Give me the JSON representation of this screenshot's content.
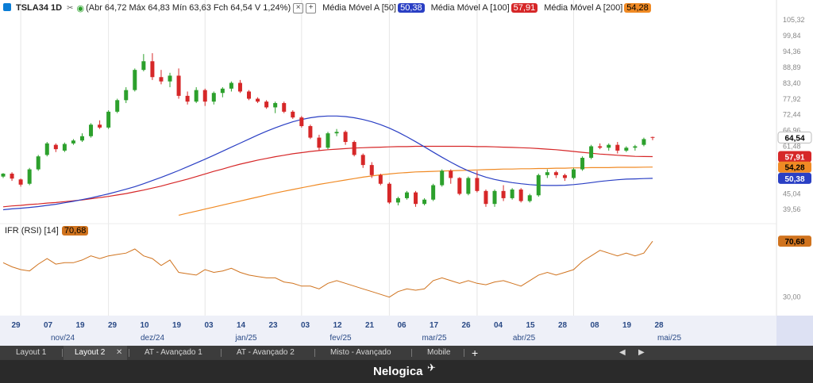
{
  "header": {
    "symbol": "TSLA34 1D",
    "ohlc": "(Abr 64,72 Máx 64,83 Mín 63,63 Fch 64,54 V 1,24%)",
    "mas": [
      {
        "label": "Média Móvel A [50]",
        "value": "50,38",
        "color": "#2a3fc4"
      },
      {
        "label": "Média Móvel A [100]",
        "value": "57,91",
        "color": "#d62728"
      },
      {
        "label": "Média Móvel A [200]",
        "value": "54,28",
        "color": "#f08a24"
      }
    ]
  },
  "rsi": {
    "label": "IFR (RSI) [14]",
    "value": "70,68",
    "color": "#d0731e"
  },
  "price_axis": {
    "ticks": [
      "105,32",
      "99,84",
      "94,36",
      "88,89",
      "83,40",
      "77,92",
      "72,44",
      "66,96",
      "61,48",
      "45,04",
      "39,56"
    ],
    "rsi_ticks": [
      "30,00"
    ]
  },
  "price_tags": [
    {
      "value": "64,54",
      "bg": "#ffffff",
      "fg": "#000000"
    },
    {
      "value": "57,91",
      "bg": "#d62728",
      "fg": "#ffffff"
    },
    {
      "value": "54,28",
      "bg": "#f08a24",
      "fg": "#000000"
    },
    {
      "value": "50,38",
      "bg": "#2a3fc4",
      "fg": "#ffffff"
    },
    {
      "value": "70,68",
      "bg": "#d0731e",
      "fg": "#000000"
    }
  ],
  "time_axis": {
    "days": [
      "29",
      "07",
      "19",
      "29",
      "10",
      "19",
      "03",
      "14",
      "23",
      "03",
      "12",
      "21",
      "06",
      "17",
      "26",
      "04",
      "15",
      "28",
      "08",
      "19",
      "28"
    ],
    "months": [
      "nov/24",
      "dez/24",
      "jan/25",
      "fev/25",
      "mar/25",
      "abr/25",
      "mai/25"
    ]
  },
  "tabs": [
    "Layout 1",
    "Layout 2",
    "AT - Avançado 1",
    "AT - Avançado 2",
    "Misto - Avançado",
    "Mobile"
  ],
  "active_tab": "Layout 2",
  "brand": "Nelogica",
  "colors": {
    "up": "#2ca02c",
    "down": "#d62728",
    "ma50": "#2a3fc4",
    "ma100": "#d62728",
    "ma200": "#f08a24",
    "rsi": "#d0731e"
  },
  "chart_data": {
    "type": "candlestick",
    "symbol": "TSLA34",
    "interval": "1D",
    "ylim": [
      36.6,
      107.3
    ],
    "x": [
      "2024-10-29",
      "2024-10-31",
      "2024-11-04",
      "2024-11-06",
      "2024-11-08",
      "2024-11-12",
      "2024-11-14",
      "2024-11-18",
      "2024-11-20",
      "2024-11-22",
      "2024-11-26",
      "2024-11-28",
      "2024-12-02",
      "2024-12-04",
      "2024-12-06",
      "2024-12-10",
      "2024-12-12",
      "2024-12-16",
      "2024-12-18",
      "2024-12-20",
      "2024-12-24",
      "2024-12-27",
      "2024-12-31",
      "2025-01-03",
      "2025-01-07",
      "2025-01-09",
      "2025-01-13",
      "2025-01-15",
      "2025-01-17",
      "2025-01-21",
      "2025-01-23",
      "2025-01-27",
      "2025-01-29",
      "2025-01-31",
      "2025-02-04",
      "2025-02-06",
      "2025-02-10",
      "2025-02-12",
      "2025-02-14",
      "2025-02-18",
      "2025-02-20",
      "2025-02-24",
      "2025-02-26",
      "2025-02-28",
      "2025-03-04",
      "2025-03-06",
      "2025-03-10",
      "2025-03-12",
      "2025-03-14",
      "2025-03-18",
      "2025-03-20",
      "2025-03-24",
      "2025-03-26",
      "2025-03-28",
      "2025-04-01",
      "2025-04-03",
      "2025-04-07",
      "2025-04-09",
      "2025-04-11",
      "2025-04-15",
      "2025-04-17",
      "2025-04-22",
      "2025-04-24",
      "2025-04-28",
      "2025-04-30",
      "2025-05-02",
      "2025-05-06",
      "2025-05-08",
      "2025-05-12",
      "2025-05-14",
      "2025-05-16",
      "2025-05-20",
      "2025-05-22",
      "2025-05-26",
      "2025-05-28"
    ],
    "candles": [
      [
        51.0,
        52.2,
        50.5,
        52.0
      ],
      [
        52.0,
        52.5,
        49.5,
        50.3
      ],
      [
        50.0,
        50.3,
        47.5,
        48.2
      ],
      [
        48.5,
        54.0,
        48.0,
        53.5
      ],
      [
        53.5,
        58.5,
        53.0,
        58.0
      ],
      [
        58.5,
        63.0,
        58.0,
        62.5
      ],
      [
        62.0,
        62.5,
        59.5,
        60.5
      ],
      [
        60.0,
        62.8,
        59.5,
        62.3
      ],
      [
        62.5,
        64.0,
        62.0,
        63.5
      ],
      [
        63.5,
        66.0,
        63.0,
        65.0
      ],
      [
        65.0,
        69.5,
        64.5,
        69.0
      ],
      [
        69.0,
        70.5,
        67.5,
        68.0
      ],
      [
        68.0,
        74.0,
        67.5,
        73.5
      ],
      [
        73.5,
        78.0,
        73.0,
        77.5
      ],
      [
        77.5,
        82.0,
        76.5,
        81.0
      ],
      [
        81.0,
        88.5,
        80.5,
        88.0
      ],
      [
        88.0,
        93.5,
        87.5,
        91.0
      ],
      [
        91.0,
        93.8,
        84.5,
        85.5
      ],
      [
        85.5,
        88.0,
        83.0,
        84.0
      ],
      [
        84.0,
        87.0,
        82.0,
        86.0
      ],
      [
        86.0,
        88.5,
        78.0,
        79.0
      ],
      [
        79.0,
        80.5,
        76.0,
        77.0
      ],
      [
        77.0,
        82.0,
        76.5,
        81.0
      ],
      [
        81.0,
        81.5,
        75.5,
        77.0
      ],
      [
        77.0,
        80.5,
        76.0,
        80.0
      ],
      [
        80.0,
        82.0,
        78.5,
        81.5
      ],
      [
        81.5,
        84.0,
        80.5,
        83.5
      ],
      [
        83.5,
        84.5,
        80.0,
        80.5
      ],
      [
        80.5,
        81.0,
        77.5,
        78.0
      ],
      [
        78.0,
        78.5,
        76.5,
        77.0
      ],
      [
        77.0,
        77.5,
        74.5,
        75.0
      ],
      [
        75.0,
        77.0,
        73.0,
        76.5
      ],
      [
        76.5,
        77.0,
        73.0,
        73.5
      ],
      [
        73.5,
        74.0,
        71.0,
        71.5
      ],
      [
        71.5,
        72.0,
        68.0,
        68.5
      ],
      [
        68.5,
        69.0,
        64.0,
        64.5
      ],
      [
        64.5,
        65.5,
        60.0,
        61.0
      ],
      [
        61.0,
        66.5,
        60.5,
        66.0
      ],
      [
        66.0,
        67.5,
        65.0,
        66.5
      ],
      [
        66.5,
        67.0,
        62.0,
        63.0
      ],
      [
        63.0,
        63.5,
        58.0,
        58.5
      ],
      [
        58.5,
        59.0,
        54.0,
        55.0
      ],
      [
        55.0,
        56.0,
        50.5,
        51.5
      ],
      [
        51.5,
        52.0,
        48.0,
        48.5
      ],
      [
        48.5,
        49.0,
        41.5,
        42.0
      ],
      [
        42.0,
        44.0,
        41.0,
        43.5
      ],
      [
        43.5,
        46.0,
        43.0,
        45.5
      ],
      [
        45.5,
        46.0,
        40.5,
        41.5
      ],
      [
        41.5,
        43.5,
        41.0,
        43.0
      ],
      [
        43.0,
        48.5,
        42.5,
        48.0
      ],
      [
        48.0,
        53.5,
        47.5,
        53.0
      ],
      [
        53.0,
        53.5,
        48.5,
        50.5
      ],
      [
        50.5,
        50.8,
        44.5,
        45.0
      ],
      [
        45.0,
        51.0,
        44.5,
        50.5
      ],
      [
        50.5,
        53.0,
        45.5,
        46.0
      ],
      [
        46.0,
        46.5,
        40.5,
        41.5
      ],
      [
        41.5,
        46.5,
        40.5,
        46.0
      ],
      [
        46.0,
        48.0,
        42.5,
        43.5
      ],
      [
        43.5,
        47.0,
        43.0,
        46.5
      ],
      [
        46.5,
        47.0,
        42.0,
        42.5
      ],
      [
        42.5,
        45.0,
        42.0,
        44.5
      ],
      [
        44.5,
        52.0,
        44.0,
        51.5
      ],
      [
        51.5,
        53.5,
        50.5,
        52.5
      ],
      [
        52.5,
        53.0,
        50.5,
        51.5
      ],
      [
        51.5,
        52.0,
        49.5,
        50.5
      ],
      [
        50.5,
        54.0,
        50.0,
        53.5
      ],
      [
        53.5,
        58.0,
        53.0,
        57.5
      ],
      [
        57.5,
        62.0,
        57.0,
        61.5
      ],
      [
        61.5,
        62.5,
        60.5,
        61.0
      ],
      [
        61.0,
        62.5,
        60.0,
        62.0
      ],
      [
        62.0,
        63.0,
        59.0,
        60.0
      ],
      [
        60.0,
        61.5,
        59.5,
        61.0
      ],
      [
        61.0,
        62.0,
        60.0,
        61.5
      ],
      [
        62.0,
        64.5,
        61.5,
        64.0
      ],
      [
        64.72,
        64.83,
        63.63,
        64.54
      ]
    ],
    "ma50": [
      39.5,
      39.8,
      40.0,
      40.3,
      40.6,
      41.0,
      41.4,
      41.9,
      42.4,
      43.0,
      43.6,
      44.3,
      45.0,
      45.8,
      46.6,
      47.5,
      48.5,
      49.6,
      50.7,
      51.9,
      53.1,
      54.4,
      55.7,
      57.0,
      58.4,
      59.8,
      61.2,
      62.6,
      64.0,
      65.4,
      66.7,
      67.9,
      69.0,
      70.0,
      70.8,
      71.4,
      71.8,
      72.0,
      72.0,
      71.8,
      71.4,
      70.8,
      70.0,
      69.0,
      67.8,
      66.4,
      64.8,
      63.1,
      61.3,
      59.5,
      57.7,
      56.0,
      54.4,
      53.0,
      51.8,
      50.8,
      50.0,
      49.4,
      48.9,
      48.5,
      48.2,
      48.0,
      47.9,
      47.9,
      48.0,
      48.2,
      48.5,
      48.9,
      49.3,
      49.6,
      49.9,
      50.1,
      50.2,
      50.3,
      50.38
    ],
    "ma100": [
      40.5,
      40.8,
      41.0,
      41.3,
      41.5,
      41.8,
      42.0,
      42.3,
      42.6,
      42.9,
      43.3,
      43.7,
      44.1,
      44.6,
      45.1,
      45.7,
      46.3,
      47.0,
      47.7,
      48.5,
      49.3,
      50.1,
      51.0,
      51.9,
      52.8,
      53.6,
      54.5,
      55.3,
      56.0,
      56.7,
      57.3,
      57.9,
      58.4,
      58.9,
      59.3,
      59.7,
      60.0,
      60.3,
      60.5,
      60.7,
      60.9,
      61.0,
      61.1,
      61.2,
      61.3,
      61.4,
      61.4,
      61.5,
      61.5,
      61.5,
      61.5,
      61.5,
      61.5,
      61.5,
      61.4,
      61.4,
      61.3,
      61.2,
      61.1,
      61.0,
      60.9,
      60.7,
      60.5,
      60.3,
      60.0,
      59.7,
      59.4,
      59.1,
      58.8,
      58.6,
      58.4,
      58.2,
      58.0,
      57.95,
      57.91
    ],
    "ma200": [
      null,
      null,
      null,
      null,
      null,
      null,
      null,
      null,
      null,
      null,
      null,
      null,
      null,
      null,
      null,
      null,
      null,
      null,
      null,
      null,
      37.6,
      38.3,
      39.0,
      39.7,
      40.4,
      41.1,
      41.8,
      42.5,
      43.2,
      43.9,
      44.6,
      45.3,
      45.9,
      46.5,
      47.1,
      47.7,
      48.3,
      48.8,
      49.3,
      49.8,
      50.3,
      50.8,
      51.2,
      51.6,
      51.9,
      52.2,
      52.4,
      52.6,
      52.7,
      52.8,
      52.9,
      53.0,
      53.1,
      53.2,
      53.3,
      53.4,
      53.5,
      53.6,
      53.6,
      53.7,
      53.7,
      53.8,
      53.8,
      53.9,
      53.9,
      54.0,
      54.0,
      54.1,
      54.1,
      54.1,
      54.2,
      54.2,
      54.2,
      54.25,
      54.28
    ],
    "rsi": [
      55,
      52,
      50,
      49,
      54,
      58,
      54,
      55,
      55,
      57,
      60,
      58,
      60,
      61,
      62,
      65,
      60,
      58,
      53,
      57,
      48,
      47,
      46,
      50,
      48,
      49,
      51,
      48,
      46,
      45,
      44,
      44,
      41,
      40,
      38,
      38,
      36,
      40,
      42,
      40,
      38,
      36,
      34,
      32,
      30,
      34,
      36,
      35,
      36,
      42,
      44,
      42,
      40,
      42,
      40,
      39,
      41,
      42,
      40,
      38,
      42,
      46,
      48,
      46,
      48,
      50,
      56,
      60,
      64,
      62,
      60,
      62,
      60,
      62,
      70.68
    ],
    "rsi_ylim": [
      20,
      80
    ]
  }
}
